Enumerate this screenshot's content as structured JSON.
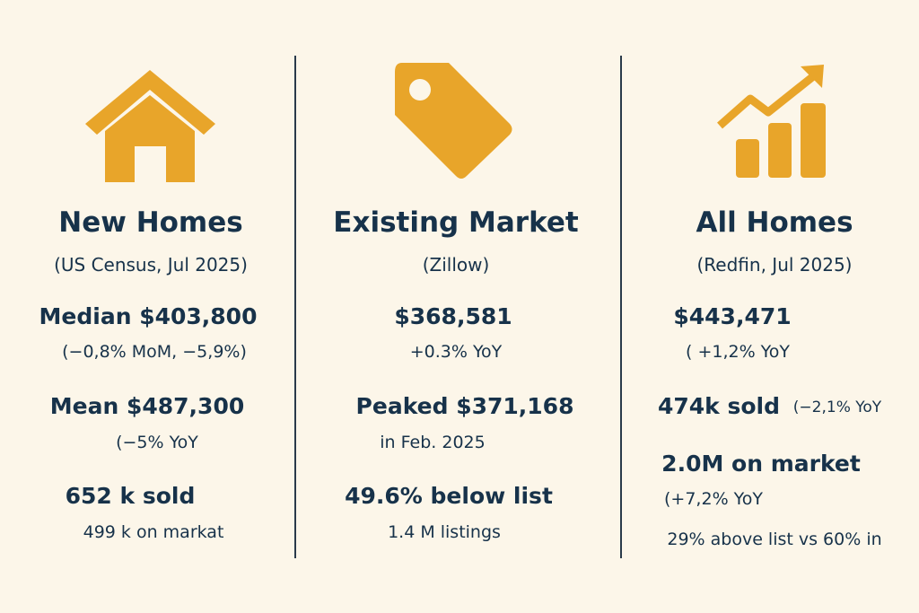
{
  "colors": {
    "background": "#fcf6e9",
    "accent": "#e8a52a",
    "text": "#17324a"
  },
  "columns": [
    {
      "icon": "house-icon",
      "title": "New Homes",
      "source": "(US Census, Jul 2025)",
      "lines": [
        "Median $403,800",
        "(−0,8% MoM, −5,9%)",
        "Mean $487,300",
        "(−5% YoY",
        "652 k sold",
        "499 k on markat"
      ]
    },
    {
      "icon": "price-tag-icon",
      "title": "Existing Market",
      "source": "(Zillow)",
      "lines": [
        "$368,581",
        "+0.3% YoY",
        "Peaked $371,168",
        "in Feb. 2025",
        "49.6% below list",
        "1.4 M listings"
      ]
    },
    {
      "icon": "growth-chart-icon",
      "title": "All Homes",
      "source": "(Redfin, Jul 2025)",
      "lines": [
        "$443,471",
        "( +1,2% YoY",
        "474k sold",
        "(−2,1% YoY",
        "2.0M on market",
        "(+7,2% YoY",
        "29% above list vs 60% in"
      ]
    }
  ]
}
